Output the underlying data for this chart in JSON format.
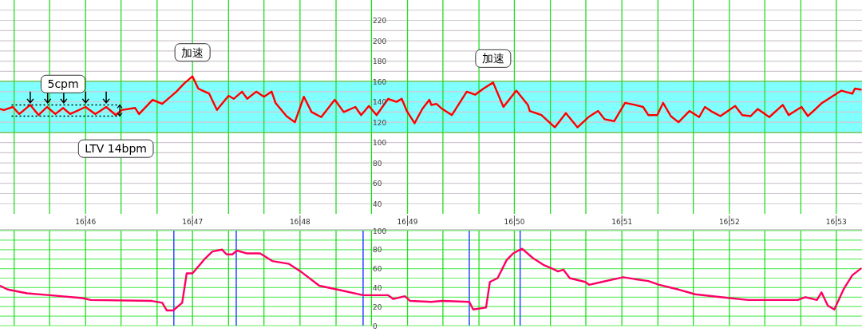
{
  "chart_data": [
    {
      "type": "line",
      "xlim": [
        16.7534,
        16.8873
      ],
      "ylim": [
        30,
        240
      ],
      "xticks": [
        {
          "value": 16.7556,
          "label": null
        },
        {
          "value": 16.7611,
          "label": null
        },
        {
          "value": 16.7667,
          "label": "16:46"
        },
        {
          "value": 16.7722,
          "label": null
        },
        {
          "value": 16.7778,
          "label": null
        },
        {
          "value": 16.7833,
          "label": "16:47"
        },
        {
          "value": 16.7889,
          "label": null
        },
        {
          "value": 16.7944,
          "label": null
        },
        {
          "value": 16.8,
          "label": "16:48"
        },
        {
          "value": 16.8056,
          "label": null
        },
        {
          "value": 16.8111,
          "label": null
        },
        {
          "value": 16.8167,
          "label": "16:49"
        },
        {
          "value": 16.8222,
          "label": null
        },
        {
          "value": 16.8278,
          "label": null
        },
        {
          "value": 16.8333,
          "label": "16:50"
        },
        {
          "value": 16.8389,
          "label": null
        },
        {
          "value": 16.8444,
          "label": null
        },
        {
          "value": 16.85,
          "label": "16:51"
        },
        {
          "value": 16.8556,
          "label": null
        },
        {
          "value": 16.8611,
          "label": null
        },
        {
          "value": 16.8667,
          "label": "16:52"
        },
        {
          "value": 16.8722,
          "label": null
        },
        {
          "value": 16.8778,
          "label": null
        },
        {
          "value": 16.8833,
          "label": "16:53"
        }
      ],
      "yticks": [
        40,
        {
          "value": 50,
          "label": null
        },
        60,
        {
          "value": 70,
          "label": null
        },
        80,
        {
          "value": 90,
          "label": null
        },
        100,
        {
          "value": 110,
          "label": null
        },
        120,
        {
          "value": 130,
          "label": null
        },
        140,
        {
          "value": 150,
          "label": null
        },
        160,
        {
          "value": 170,
          "label": null
        },
        180,
        {
          "value": 190,
          "label": null
        },
        200,
        {
          "value": 210,
          "label": null
        },
        220,
        {
          "value": 230,
          "label": null
        }
      ],
      "grid": true,
      "bands": [
        {
          "axis": "y",
          "from": 110,
          "to": 160,
          "color": "#80ffff"
        }
      ],
      "series": [
        {
          "color": "#ff0000",
          "x": [
            16.7534,
            16.754,
            16.7554,
            16.7564,
            16.7581,
            16.7594,
            16.7607,
            16.762,
            16.7632,
            16.7643,
            16.7667,
            16.7682,
            16.7699,
            16.7714,
            16.7723,
            16.7744,
            16.775,
            16.7771,
            16.7786,
            16.7808,
            16.782,
            16.7833,
            16.7842,
            16.7859,
            16.7871,
            16.7889,
            16.7897,
            16.791,
            16.7918,
            16.7932,
            16.7944,
            16.7956,
            16.7962,
            16.7979,
            16.7992,
            16.8006,
            16.8018,
            16.8033,
            16.8054,
            16.8068,
            16.8086,
            16.8095,
            16.8107,
            16.8119,
            16.8137,
            16.815,
            16.8158,
            16.8166,
            16.8178,
            16.819,
            16.8201,
            16.8204,
            16.8212,
            16.8221,
            16.8236,
            16.8259,
            16.8272,
            16.8285,
            16.83,
            16.8316,
            16.8336,
            16.8354,
            16.8357,
            16.8375,
            16.8396,
            16.8413,
            16.8431,
            16.8448,
            16.8463,
            16.8473,
            16.8488,
            16.8505,
            16.852,
            16.8533,
            16.8541,
            16.8555,
            16.8564,
            16.8576,
            16.8588,
            16.8605,
            16.862,
            16.8629,
            16.8641,
            16.8653,
            16.8676,
            16.8687,
            16.87,
            16.8711,
            16.8729,
            16.875,
            16.8759,
            16.8779,
            16.8789,
            16.8811,
            16.8841,
            16.8858,
            16.8862,
            16.8871
          ],
          "values": [
            133,
            132,
            135,
            128,
            137,
            127,
            135,
            128,
            134,
            128,
            135,
            128,
            135,
            127,
            132,
            134,
            128,
            142,
            138,
            150,
            158,
            165,
            153,
            148,
            132,
            146,
            143,
            150,
            143,
            150,
            145,
            150,
            139,
            126,
            120,
            145,
            130,
            125,
            142,
            130,
            135,
            127,
            136,
            127,
            143,
            140,
            143,
            131,
            119,
            133,
            142,
            137,
            138,
            133,
            127,
            150,
            147,
            153,
            159,
            135,
            151,
            137,
            131,
            127,
            115,
            129,
            115,
            125,
            131,
            123,
            121,
            139,
            137,
            135,
            127,
            127,
            139,
            126,
            120,
            131,
            125,
            135,
            130,
            126,
            136,
            127,
            126,
            133,
            125,
            137,
            127,
            135,
            126,
            139,
            151,
            148,
            153,
            152
          ]
        }
      ],
      "annotations": [
        {
          "text": "加速",
          "x": 16.7833,
          "y": 165
        },
        {
          "text": "加速",
          "x": 16.83,
          "y": 159
        },
        {
          "text": "5cpm",
          "x": 16.7632,
          "y": 134
        },
        {
          "text": "LTV  14bpm",
          "x": 16.7714,
          "y": 127
        }
      ]
    },
    {
      "type": "line",
      "xlim": [
        16.7534,
        16.8873
      ],
      "ylim": [
        0,
        100
      ],
      "tick_labels": "y",
      "xticks": [
        {
          "value": 16.7556,
          "label": null
        },
        {
          "value": 16.7611,
          "label": null
        },
        {
          "value": 16.7667,
          "label": null
        },
        {
          "value": 16.7722,
          "label": null
        },
        {
          "value": 16.7778,
          "label": null
        },
        {
          "value": 16.7833,
          "label": null
        },
        {
          "value": 16.7889,
          "label": null
        },
        {
          "value": 16.7944,
          "label": null
        },
        {
          "value": 16.8,
          "label": null
        },
        {
          "value": 16.8056,
          "label": null
        },
        {
          "value": 16.8111,
          "label": null
        },
        {
          "value": 16.8167,
          "label": null
        },
        {
          "value": 16.8222,
          "label": null
        },
        {
          "value": 16.8278,
          "label": null
        },
        {
          "value": 16.8333,
          "label": null
        },
        {
          "value": 16.8389,
          "label": null
        },
        {
          "value": 16.8444,
          "label": null
        },
        {
          "value": 16.85,
          "label": null
        },
        {
          "value": 16.8556,
          "label": null
        },
        {
          "value": 16.8611,
          "label": null
        },
        {
          "value": 16.8667,
          "label": null
        },
        {
          "value": 16.8722,
          "label": null
        },
        {
          "value": 16.8778,
          "label": null
        },
        {
          "value": 16.8833,
          "label": null
        }
      ],
      "yticks": [
        0,
        {
          "value": 10,
          "label": null
        },
        20,
        {
          "value": 30,
          "label": null
        },
        40,
        {
          "value": 50,
          "label": null
        },
        60,
        {
          "value": 70,
          "label": null
        },
        80,
        {
          "value": 90,
          "label": null
        },
        100
      ],
      "grid": true,
      "ref_lines": [
        {
          "axis": "x",
          "value": 16.7804,
          "color": "#3355ff"
        },
        {
          "axis": "x",
          "value": 16.7901,
          "color": "#3355ff"
        },
        {
          "axis": "x",
          "value": 16.8098,
          "color": "#3355ff"
        },
        {
          "axis": "x",
          "value": 16.8263,
          "color": "#3355ff"
        },
        {
          "axis": "x",
          "value": 16.8342,
          "color": "#3355ff"
        }
      ],
      "series": [
        {
          "color": "#ff0066",
          "x": [
            16.7534,
            16.7546,
            16.7576,
            16.7611,
            16.7662,
            16.7675,
            16.777,
            16.7786,
            16.7793,
            16.7803,
            16.7817,
            16.7824,
            16.7833,
            16.7853,
            16.7864,
            16.7879,
            16.7886,
            16.7895,
            16.7902,
            16.7918,
            16.7938,
            16.7957,
            16.7983,
            16.8003,
            16.803,
            16.8065,
            16.8098,
            16.8137,
            16.8145,
            16.8163,
            16.8171,
            16.8204,
            16.8221,
            16.8263,
            16.8269,
            16.8289,
            16.8295,
            16.8307,
            16.8321,
            16.8331,
            16.8345,
            16.8362,
            16.8378,
            16.8392,
            16.8401,
            16.8409,
            16.8419,
            16.8443,
            16.8449,
            16.8469,
            16.8502,
            16.852,
            16.8541,
            16.8558,
            16.8588,
            16.8614,
            16.8653,
            16.8696,
            16.8773,
            16.8785,
            16.8803,
            16.881,
            16.882,
            16.883,
            16.8845,
            16.8858,
            16.8871
          ],
          "values": [
            42,
            38,
            34,
            32,
            29,
            27,
            26,
            24,
            16,
            16,
            24,
            55,
            55,
            71,
            78,
            80,
            75,
            75,
            79,
            76,
            76,
            68,
            65,
            56,
            42,
            37,
            32,
            32,
            28,
            31,
            26,
            25,
            26,
            25,
            17,
            19,
            46,
            50,
            69,
            76,
            81,
            71,
            64,
            60,
            57,
            59,
            50,
            46,
            43,
            46,
            51,
            49,
            47,
            43,
            38,
            33,
            30,
            27,
            27,
            30,
            27,
            35,
            21,
            17,
            39,
            53,
            60
          ]
        }
      ]
    }
  ]
}
